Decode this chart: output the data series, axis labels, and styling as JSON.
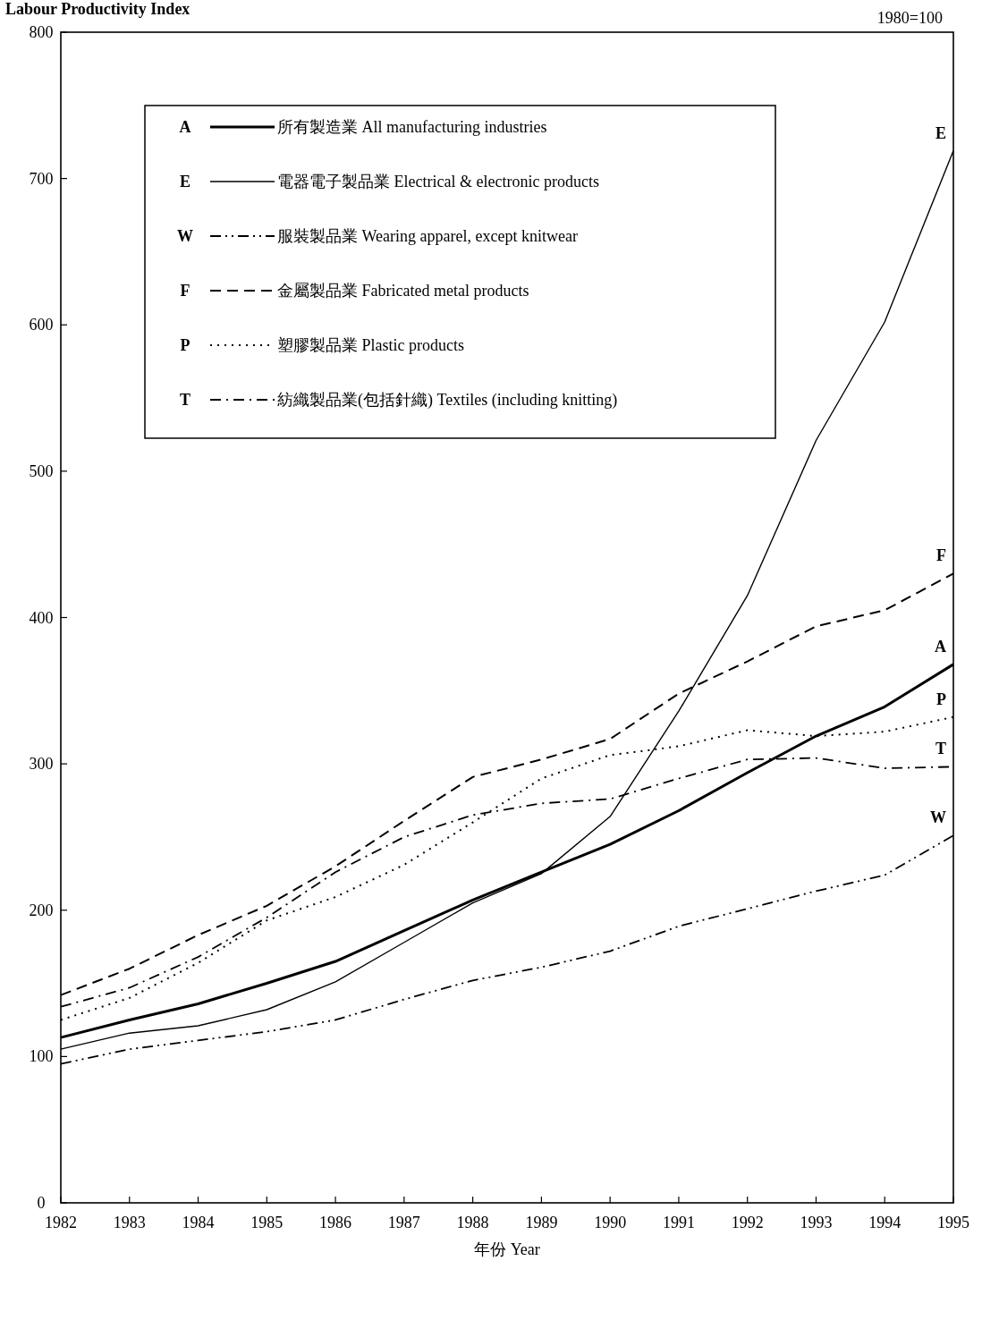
{
  "chart_data": {
    "type": "line",
    "ylabel": "Labour Productivity Index",
    "xlabel": "年份 Year",
    "x": [
      1982,
      1983,
      1984,
      1985,
      1986,
      1987,
      1988,
      1989,
      1990,
      1991,
      1992,
      1993,
      1994,
      1995
    ],
    "xlim": [
      1982,
      1995
    ],
    "xticks": [
      1982,
      1983,
      1984,
      1985,
      1986,
      1987,
      1988,
      1989,
      1990,
      1991,
      1992,
      1993,
      1994,
      1995
    ],
    "ylim": [
      0,
      800
    ],
    "yticks": [
      0,
      100,
      200,
      300,
      400,
      500,
      600,
      700,
      800
    ],
    "grid": false,
    "legend": "top left",
    "marker": "none",
    "series": [
      {
        "name": "所有製造業 All manufacturing industries",
        "color": "#000000",
        "line_style": "solid",
        "values": [
          113,
          125,
          136,
          150,
          165,
          186,
          207,
          226,
          245,
          268,
          294,
          319,
          339,
          368
        ]
      },
      {
        "name": "電器電子製品業 Electrical & electronic products",
        "color": "#000000",
        "line_style": "solid",
        "values": [
          105,
          116,
          121,
          132,
          151,
          178,
          205,
          225,
          264,
          336,
          415,
          521,
          602,
          719
        ]
      },
      {
        "name": "服裝製品業 Wearing apparel, except knitwear",
        "color": "#000000",
        "line_style": "dashdotdot",
        "values": [
          95,
          105,
          111,
          117,
          125,
          139,
          152,
          161,
          172,
          189,
          201,
          213,
          224,
          251
        ]
      },
      {
        "name": "金屬製品業 Fabricated metal products",
        "color": "#000000",
        "line_style": "dashed",
        "values": [
          142,
          160,
          183,
          203,
          230,
          261,
          291,
          303,
          317,
          348,
          370,
          394,
          405,
          430
        ]
      },
      {
        "name": "塑膠製品業 Plastic products",
        "color": "#000000",
        "line_style": "dotted",
        "values": [
          125,
          140,
          164,
          193,
          209,
          231,
          260,
          290,
          306,
          312,
          323,
          319,
          322,
          332
        ]
      },
      {
        "name": "紡織製品業(包括針織) Textiles (including knitting)",
        "color": "#000000",
        "line_style": "dashdot",
        "values": [
          134,
          147,
          168,
          195,
          226,
          250,
          265,
          273,
          276,
          290,
          303,
          304,
          297,
          298
        ]
      }
    ],
    "annotations": [
      "A",
      "E",
      "W",
      "F",
      "P",
      "T",
      "1980=100"
    ]
  }
}
